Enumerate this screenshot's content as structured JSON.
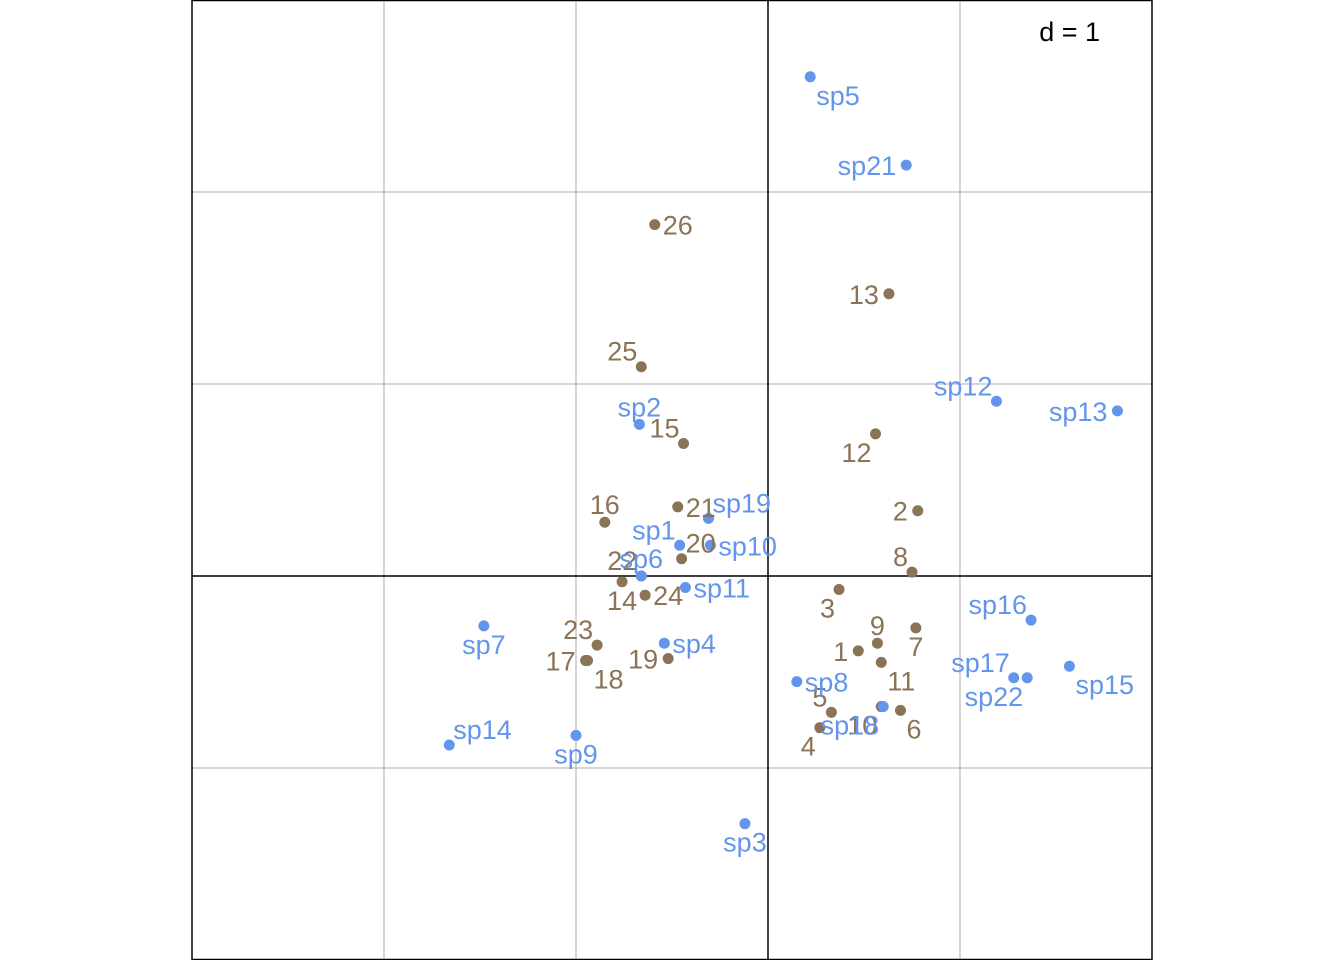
{
  "chart_data": {
    "type": "scatter",
    "scale_label": "d = 1",
    "xlim": [
      -3,
      2
    ],
    "ylim": [
      -2,
      3
    ],
    "grid_step": 1,
    "grid": true,
    "colors": {
      "sites": "#8B7355",
      "species": "#6495ED",
      "grid": "#BEBEBE",
      "axes": "#000000"
    },
    "series": [
      {
        "role": "sites",
        "points": [
          {
            "label": "1",
            "x": 0.47,
            "y": -0.39,
            "pos": "left"
          },
          {
            "label": "2",
            "x": 0.78,
            "y": 0.34,
            "pos": "left"
          },
          {
            "label": "3",
            "x": 0.37,
            "y": -0.07,
            "pos": "below-left"
          },
          {
            "label": "4",
            "x": 0.27,
            "y": -0.79,
            "pos": "below-left"
          },
          {
            "label": "5",
            "x": 0.33,
            "y": -0.71,
            "pos": "above-left"
          },
          {
            "label": "6",
            "x": 0.69,
            "y": -0.7,
            "pos": "below-right"
          },
          {
            "label": "7",
            "x": 0.77,
            "y": -0.27,
            "pos": "below"
          },
          {
            "label": "8",
            "x": 0.75,
            "y": 0.02,
            "pos": "above-left"
          },
          {
            "label": "9",
            "x": 0.57,
            "y": -0.35,
            "pos": "above"
          },
          {
            "label": "10",
            "x": 0.59,
            "y": -0.68,
            "pos": "below-left"
          },
          {
            "label": "11",
            "x": 0.59,
            "y": -0.45,
            "pos": "below-right"
          },
          {
            "label": "12",
            "x": 0.56,
            "y": 0.74,
            "pos": "below-left"
          },
          {
            "label": "13",
            "x": 0.63,
            "y": 1.47,
            "pos": "left"
          },
          {
            "label": "14",
            "x": -0.76,
            "y": -0.03,
            "pos": "below"
          },
          {
            "label": "15",
            "x": -0.44,
            "y": 0.69,
            "pos": "above-left"
          },
          {
            "label": "16",
            "x": -0.85,
            "y": 0.28,
            "pos": "above"
          },
          {
            "label": "17",
            "x": -0.95,
            "y": -0.44,
            "pos": "left"
          },
          {
            "label": "18",
            "x": -0.94,
            "y": -0.44,
            "pos": "below-right"
          },
          {
            "label": "19",
            "x": -0.52,
            "y": -0.43,
            "pos": "left"
          },
          {
            "label": "20",
            "x": -0.45,
            "y": 0.09,
            "pos": "above-right"
          },
          {
            "label": "21",
            "x": -0.47,
            "y": 0.36,
            "pos": "right"
          },
          {
            "label": "22",
            "x": -0.66,
            "y": 0.0,
            "pos": "above-left"
          },
          {
            "label": "23",
            "x": -0.89,
            "y": -0.36,
            "pos": "above-left"
          },
          {
            "label": "24",
            "x": -0.64,
            "y": -0.1,
            "pos": "right"
          },
          {
            "label": "25",
            "x": -0.66,
            "y": 1.09,
            "pos": "above-left"
          },
          {
            "label": "26",
            "x": -0.59,
            "y": 1.83,
            "pos": "right"
          }
        ]
      },
      {
        "role": "species",
        "points": [
          {
            "label": "sp1",
            "x": -0.46,
            "y": 0.16,
            "pos": "above-left"
          },
          {
            "label": "sp2",
            "x": -0.67,
            "y": 0.79,
            "pos": "above"
          },
          {
            "label": "sp3",
            "x": -0.12,
            "y": -1.29,
            "pos": "below"
          },
          {
            "label": "sp4",
            "x": -0.54,
            "y": -0.35,
            "pos": "right"
          },
          {
            "label": "sp5",
            "x": 0.22,
            "y": 2.6,
            "pos": "below-right"
          },
          {
            "label": "sp6",
            "x": -0.66,
            "y": 0.0,
            "pos": "above"
          },
          {
            "label": "sp7",
            "x": -1.48,
            "y": -0.26,
            "pos": "below"
          },
          {
            "label": "sp8",
            "x": 0.15,
            "y": -0.55,
            "pos": "right"
          },
          {
            "label": "sp9",
            "x": -1.0,
            "y": -0.83,
            "pos": "below"
          },
          {
            "label": "sp10",
            "x": -0.3,
            "y": 0.16,
            "pos": "right"
          },
          {
            "label": "sp11",
            "x": -0.43,
            "y": -0.06,
            "pos": "right"
          },
          {
            "label": "sp12",
            "x": 1.19,
            "y": 0.91,
            "pos": "above-left"
          },
          {
            "label": "sp13",
            "x": 1.82,
            "y": 0.86,
            "pos": "left"
          },
          {
            "label": "sp14",
            "x": -1.66,
            "y": -0.88,
            "pos": "above-right"
          },
          {
            "label": "sp15",
            "x": 1.57,
            "y": -0.47,
            "pos": "below-right"
          },
          {
            "label": "sp16",
            "x": 1.37,
            "y": -0.23,
            "pos": "above-left"
          },
          {
            "label": "sp17",
            "x": 1.28,
            "y": -0.53,
            "pos": "above-left"
          },
          {
            "label": "sp18",
            "x": 0.6,
            "y": -0.68,
            "pos": "below-left"
          },
          {
            "label": "sp19",
            "x": -0.31,
            "y": 0.3,
            "pos": "above-right"
          },
          {
            "label": "sp21",
            "x": 0.72,
            "y": 2.14,
            "pos": "left"
          },
          {
            "label": "sp22",
            "x": 1.35,
            "y": -0.53,
            "pos": "below-left"
          }
        ]
      }
    ]
  }
}
